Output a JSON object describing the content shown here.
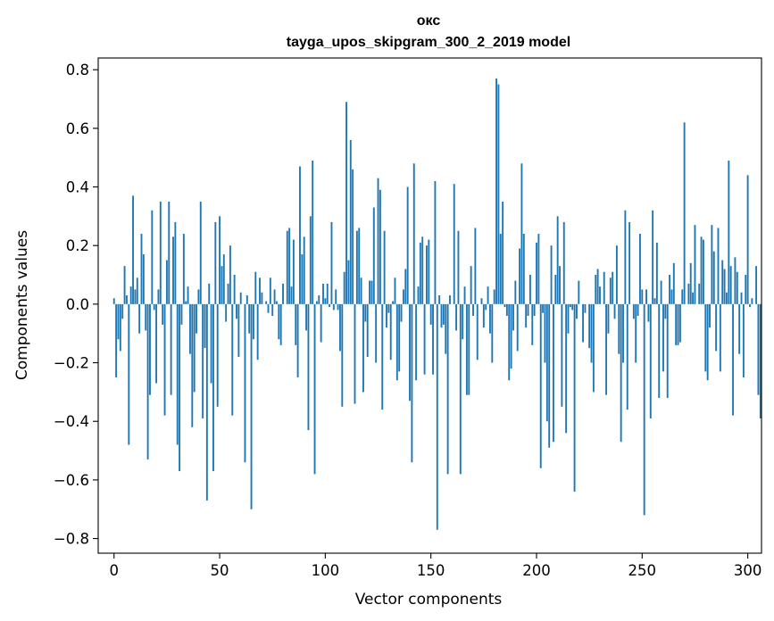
{
  "chart_data": {
    "type": "bar",
    "title": "окс",
    "subtitle": "tayga_upos_skipgram_300_2_2019 model",
    "xlabel": "Vector components",
    "ylabel": "Components values",
    "xlim": [
      -7.5,
      306.5
    ],
    "ylim": [
      -0.85,
      0.84
    ],
    "xticks": [
      0,
      50,
      100,
      150,
      200,
      250,
      300
    ],
    "yticks": [
      -0.8,
      -0.6,
      -0.4,
      -0.2,
      0.0,
      0.2,
      0.4,
      0.6,
      0.8
    ],
    "ytick_labels": [
      "−0.8",
      "−0.6",
      "−0.4",
      "−0.2",
      "0.0",
      "0.2",
      "0.4",
      "0.6",
      "0.8"
    ],
    "bar_color": "#1f77b4",
    "series": [
      {
        "name": "окс",
        "x_start": 0,
        "values": [
          0.02,
          -0.25,
          -0.12,
          -0.16,
          -0.05,
          0.13,
          0.03,
          -0.48,
          0.06,
          0.37,
          0.05,
          0.09,
          -0.1,
          0.24,
          0.17,
          -0.09,
          -0.53,
          -0.31,
          0.32,
          -0.02,
          -0.27,
          0.05,
          0.35,
          -0.07,
          -0.38,
          0.15,
          0.35,
          -0.31,
          0.23,
          0.28,
          -0.48,
          -0.57,
          -0.07,
          0.24,
          0.01,
          0.06,
          -0.17,
          -0.42,
          -0.3,
          -0.1,
          0.05,
          0.35,
          -0.39,
          -0.15,
          -0.67,
          0.07,
          -0.27,
          -0.57,
          0.28,
          -0.35,
          0.3,
          0.13,
          0.17,
          -0.06,
          0.07,
          0.2,
          -0.38,
          0.1,
          -0.05,
          -0.18,
          0.04,
          0.0,
          -0.54,
          0.03,
          -0.1,
          -0.7,
          -0.12,
          0.11,
          -0.19,
          0.09,
          0.04,
          0.0,
          0.01,
          -0.03,
          0.09,
          -0.04,
          0.05,
          0.01,
          -0.12,
          -0.14,
          0.07,
          0.0,
          0.25,
          0.26,
          0.06,
          0.22,
          -0.14,
          -0.25,
          0.47,
          0.17,
          0.23,
          -0.09,
          -0.43,
          0.3,
          0.49,
          -0.58,
          0.01,
          0.03,
          -0.13,
          0.07,
          0.02,
          0.07,
          -0.01,
          0.28,
          -0.02,
          0.05,
          -0.02,
          -0.16,
          -0.35,
          0.11,
          0.69,
          0.15,
          0.56,
          0.46,
          -0.34,
          0.25,
          0.26,
          0.09,
          -0.3,
          -0.06,
          -0.18,
          0.08,
          0.08,
          0.33,
          -0.2,
          0.43,
          0.39,
          -0.36,
          0.25,
          -0.08,
          -0.03,
          -0.19,
          0.01,
          0.09,
          -0.26,
          -0.23,
          -0.06,
          0.05,
          0.12,
          0.4,
          -0.33,
          -0.54,
          0.48,
          -0.26,
          0.06,
          0.21,
          0.23,
          -0.24,
          0.2,
          0.22,
          -0.07,
          -0.24,
          0.42,
          -0.77,
          0.03,
          -0.08,
          -0.07,
          -0.17,
          -0.58,
          0.03,
          0.0,
          0.41,
          -0.09,
          0.25,
          -0.58,
          -0.12,
          0.06,
          -0.31,
          -0.31,
          0.13,
          -0.04,
          0.26,
          -0.19,
          0.0,
          0.02,
          -0.08,
          -0.02,
          0.06,
          -0.1,
          -0.2,
          0.05,
          0.77,
          0.75,
          0.24,
          0.35,
          -0.01,
          -0.04,
          -0.26,
          -0.22,
          -0.09,
          0.08,
          -0.16,
          0.19,
          0.48,
          0.24,
          -0.08,
          -0.04,
          0.1,
          -0.14,
          -0.04,
          0.21,
          0.24,
          -0.56,
          -0.03,
          -0.2,
          -0.4,
          -0.49,
          0.2,
          -0.47,
          0.1,
          0.3,
          0.13,
          -0.35,
          0.28,
          -0.44,
          -0.1,
          -0.01,
          -0.02,
          -0.64,
          -0.05,
          0.08,
          0.0,
          -0.13,
          -0.03,
          0.0,
          -0.15,
          -0.2,
          -0.3,
          0.1,
          0.12,
          0.06,
          0.0,
          0.11,
          -0.31,
          -0.1,
          0.09,
          0.11,
          -0.05,
          0.2,
          -0.17,
          -0.47,
          -0.2,
          0.32,
          -0.36,
          0.28,
          0.0,
          -0.05,
          -0.2,
          -0.04,
          0.24,
          0.05,
          -0.72,
          0.05,
          -0.06,
          -0.39,
          0.32,
          0.02,
          0.21,
          -0.32,
          0.08,
          -0.23,
          -0.05,
          -0.32,
          0.1,
          0.05,
          0.14,
          -0.14,
          -0.14,
          -0.13,
          0.05,
          0.62,
          0.0,
          0.07,
          0.14,
          0.04,
          0.27,
          0.0,
          0.07,
          0.23,
          0.22,
          -0.23,
          -0.26,
          -0.08,
          0.27,
          0.18,
          -0.16,
          0.26,
          -0.23,
          0.15,
          0.12,
          0.04,
          0.49,
          0.13,
          -0.38,
          0.16,
          0.11,
          -0.17,
          0.04,
          -0.25,
          0.1,
          0.44,
          -0.01,
          0.02,
          0.0,
          0.13,
          -0.31,
          -0.39
        ]
      }
    ]
  }
}
